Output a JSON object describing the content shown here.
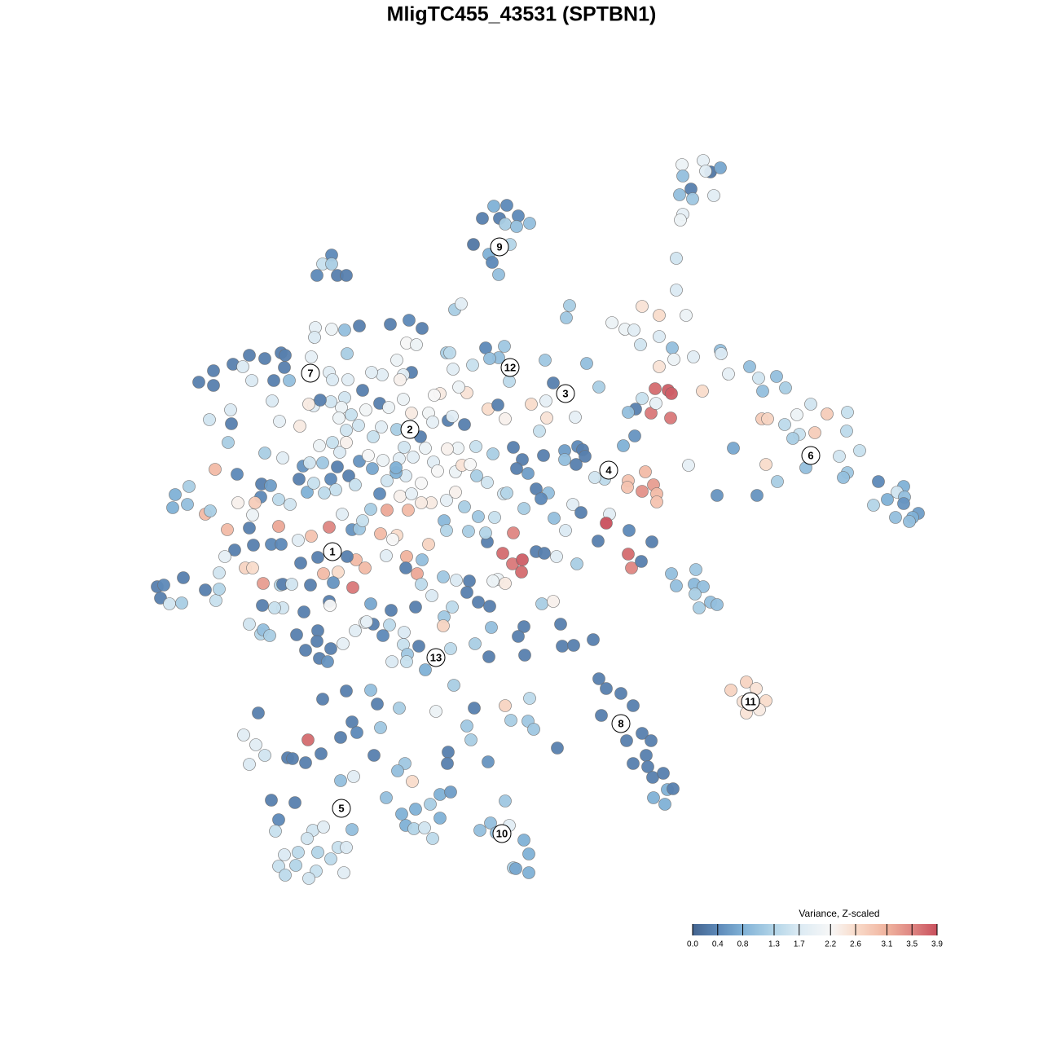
{
  "chart_data": {
    "type": "scatter",
    "title": "MligTC455_43531 (SPTBN1)",
    "colorbar_title": "Variance, Z-scaled",
    "xlim": [
      0,
      1280
    ],
    "ylim": [
      1280,
      0
    ],
    "clim": [
      0,
      3.9
    ],
    "cticks": [
      {
        "value": 0,
        "label": "0.0"
      },
      0.4,
      0.8,
      1.3,
      1.7,
      2.2,
      2.6,
      3.1,
      3.5,
      3.9
    ],
    "colormap": [
      [
        0,
        "#44648f"
      ],
      [
        0.4,
        "#5d89b8"
      ],
      [
        0.8,
        "#80b1d6"
      ],
      [
        1.3,
        "#b3d5e8"
      ],
      [
        1.7,
        "#dbeaf3"
      ],
      [
        2.2,
        "#f7f7f7"
      ],
      [
        2.6,
        "#f9dccb"
      ],
      [
        3.1,
        "#f0b39e"
      ],
      [
        3.5,
        "#de8682"
      ],
      [
        3.9,
        "#c9505d"
      ]
    ],
    "x": [
      837,
      863,
      872,
      884,
      866,
      838,
      834,
      848,
      850,
      876,
      838,
      835,
      830,
      830,
      606,
      622,
      592,
      613,
      620,
      636,
      650,
      634,
      581,
      600,
      604,
      626,
      612,
      407,
      396,
      407,
      389,
      414,
      425,
      558,
      566,
      699,
      695,
      788,
      809,
      842,
      751,
      767,
      778,
      809,
      786,
      825,
      827,
      851,
      884,
      885,
      920,
      931,
      953,
      936,
      964,
      894,
      862,
      809,
      804,
      820,
      824,
      799,
      823,
      788,
      805,
      780,
      771,
      779,
      765,
      995,
      978,
      1015,
      1040,
      935,
      942,
      963,
      981,
      973,
      1000,
      1039,
      1030,
      1055,
      989,
      1040,
      1035,
      1078,
      1109,
      1101,
      1110,
      1089,
      1072,
      1109,
      1127,
      1120,
      1099,
      1116,
      954,
      940,
      900,
      880,
      929,
      845,
      771,
      792,
      770,
      802,
      788,
      806,
      806,
      748,
      744,
      772,
      734,
      800,
      771,
      775,
      787,
      742,
      730,
      824,
      854,
      852,
      863,
      830,
      853,
      872,
      880,
      858,
      916,
      897,
      928,
      912,
      940,
      916,
      932,
      728,
      735,
      744,
      762,
      777,
      738,
      769,
      788,
      799,
      793,
      777,
      795,
      801,
      814,
      819,
      826,
      802,
      816,
      620,
      602,
      625,
      589,
      609,
      643,
      649,
      630,
      633,
      649,
      333,
      362,
      342,
      338,
      384,
      397,
      377,
      432,
      415,
      425,
      349,
      366,
      390,
      406,
      342,
      363,
      388,
      350,
      422,
      379,
      418,
      434,
      396,
      425,
      455,
      463,
      490,
      535,
      557,
      582,
      620,
      650,
      627,
      648,
      655,
      573,
      578,
      467,
      432,
      418,
      438,
      317,
      299,
      314,
      325,
      306,
      378,
      353,
      359,
      375,
      394,
      459,
      497,
      488,
      506,
      550,
      549,
      599,
      684,
      474,
      540,
      553,
      493,
      510,
      528,
      498,
      508,
      521,
      540,
      531,
      193,
      201,
      197,
      208,
      223,
      225,
      252,
      265,
      269,
      215,
      232,
      212,
      230,
      252,
      258,
      264,
      291,
      244,
      262,
      262,
      286,
      306,
      325,
      345,
      350,
      349,
      355,
      336,
      309,
      298,
      283,
      257,
      284,
      280,
      334,
      343,
      368,
      385,
      379,
      325,
      347,
      321,
      320,
      292,
      313,
      310,
      342,
      356,
      377,
      372,
      367,
      279,
      306,
      342,
      311,
      288,
      276,
      333,
      345,
      366,
      382,
      404,
      420,
      432,
      441,
      301,
      310,
      269,
      323,
      344,
      347,
      358,
      381,
      369,
      390,
      397,
      415,
      409,
      433,
      437,
      426,
      448,
      467,
      487,
      482,
      474,
      499,
      498,
      512,
      517,
      526,
      518,
      544,
      560,
      576,
      598,
      617,
      629,
      641,
      640,
      630,
      658,
      668,
      683,
      708,
      611,
      605,
      620,
      643,
      636,
      603,
      600,
      644,
      688,
      690,
      704,
      665,
      679,
      587,
      601,
      573,
      555,
      545,
      544,
      530,
      510,
      480,
      478,
      470,
      496,
      495,
      514,
      500,
      481,
      499,
      522,
      553,
      583,
      455,
      458,
      448,
      450,
      436,
      404,
      405,
      373,
      347,
      322,
      337,
      306,
      320,
      323,
      331,
      364,
      390,
      389,
      375,
      421,
      406,
      392,
      402,
      545,
      548,
      575,
      596,
      607,
      618,
      587,
      570,
      559,
      548,
      529,
      517,
      501,
      475,
      455,
      445,
      466,
      491,
      505,
      517,
      498,
      486,
      490,
      496,
      507,
      522,
      532,
      537,
      559,
      567,
      577,
      584,
      562,
      549,
      605,
      630,
      641,
      667,
      693,
      693,
      709,
      715,
      707,
      718,
      634,
      648,
      658,
      673,
      664,
      703,
      713,
      680,
      694,
      643,
      622,
      598,
      585,
      428,
      436,
      414,
      406,
      412,
      398,
      385,
      441,
      417,
      408,
      396,
      380,
      452,
      457,
      475,
      470,
      486,
      458,
      440,
      468,
      487,
      449,
      466,
      477,
      495,
      505,
      526,
      516,
      531,
      550,
      555,
      570,
      540,
      533,
      573,
      563,
      599,
      611,
      620,
      652,
      670,
      671,
      662,
      706,
      679,
      669,
      720,
      735,
      625,
      596,
      619,
      612,
      601,
      580,
      556,
      548,
      552,
      502,
      518,
      479,
      499,
      511,
      487,
      505,
      495,
      491,
      469,
      456,
      445,
      427,
      426,
      441,
      423,
      407,
      387,
      386,
      382,
      404,
      408,
      423,
      419,
      431,
      406,
      393,
      416,
      425,
      425,
      392,
      332
    ],
    "y": [
      202,
      197,
      211,
      206,
      210,
      216,
      239,
      232,
      244,
      240,
      263,
      270,
      317,
      356,
      253,
      252,
      268,
      268,
      275,
      265,
      274,
      278,
      300,
      312,
      322,
      300,
      337,
      313,
      324,
      324,
      338,
      338,
      338,
      380,
      373,
      375,
      390,
      376,
      387,
      387,
      396,
      404,
      405,
      413,
      423,
      427,
      441,
      438,
      430,
      434,
      450,
      464,
      462,
      480,
      476,
      459,
      480,
      450,
      477,
      479,
      483,
      507,
      513,
      489,
      495,
      502,
      506,
      535,
      547,
      496,
      509,
      508,
      506,
      514,
      514,
      521,
      533,
      538,
      531,
      529,
      560,
      553,
      574,
      580,
      586,
      591,
      597,
      604,
      610,
      613,
      620,
      618,
      630,
      635,
      635,
      640,
      591,
      570,
      550,
      608,
      608,
      571,
      590,
      579,
      598,
      595,
      603,
      606,
      616,
      631,
      642,
      651,
      664,
      665,
      680,
      697,
      689,
      588,
      586,
      704,
      699,
      717,
      720,
      719,
      729,
      739,
      742,
      746,
      837,
      847,
      845,
      861,
      860,
      875,
      871,
      785,
      833,
      845,
      851,
      866,
      878,
      909,
      900,
      909,
      927,
      937,
      941,
      954,
      949,
      969,
      968,
      979,
      987,
      983,
      1010,
      1013,
      1019,
      1022,
      1031,
      1048,
      1065,
      1066,
      1071,
      982,
      985,
      1006,
      1020,
      1019,
      1015,
      1029,
      1018,
      1040,
      1040,
      1049,
      1046,
      1046,
      1054,
      1063,
      1062,
      1069,
      1074,
      1071,
      1078,
      958,
      953,
      858,
      848,
      847,
      864,
      869,
      873,
      841,
      869,
      866,
      857,
      884,
      885,
      895,
      891,
      908,
      893,
      886,
      905,
      899,
      875,
      902,
      914,
      927,
      938,
      908,
      930,
      931,
      936,
      925,
      927,
      937,
      946,
      959,
      923,
      937,
      935,
      918,
      979,
      975,
      972,
      999,
      993,
      987,
      1013,
      1017,
      1016,
      1004,
      1029,
      720,
      718,
      734,
      741,
      740,
      709,
      724,
      737,
      723,
      607,
      597,
      623,
      619,
      631,
      627,
      576,
      582,
      469,
      455,
      473,
      447,
      436,
      440,
      433,
      436,
      451,
      467,
      467,
      467,
      450,
      503,
      515,
      520,
      543,
      492,
      517,
      523,
      498,
      496,
      556,
      562,
      594,
      610,
      617,
      617,
      632,
      613,
      619,
      604,
      572,
      588,
      650,
      648,
      646,
      669,
      675,
      683,
      668,
      668,
      663,
      658,
      647,
      631,
      650,
      649,
      697,
      697,
      703,
      716,
      718,
      717,
      717,
      718,
      691,
      684,
      704,
      702,
      715,
      721,
      687,
      683,
      697,
      655,
      657,
      662,
      682,
      683,
      697,
      704,
      717,
      668,
      687,
      708,
      712,
      713,
      665,
      679,
      692,
      687,
      702,
      654,
      677,
      679,
      683,
      692,
      711,
      713,
      716,
      769,
      781,
      770,
      806,
      804,
      766,
      793,
      792,
      741,
      738,
      739,
      744,
      727,
      745,
      757,
      768,
      731,
      745,
      749,
      767,
      780,
      776,
      791,
      793,
      803,
      812,
      812,
      822,
      796,
      790,
      741,
      766,
      764,
      763,
      774,
      738,
      743,
      751,
      746,
      743,
      746,
      766,
      778,
      773,
      780,
      779,
      774,
      787,
      798,
      790,
      796,
      808,
      812,
      639,
      651,
      652,
      654,
      635,
      606,
      634,
      622,
      604,
      614,
      617,
      617,
      626,
      626,
      625,
      639,
      606,
      609,
      606,
      593,
      584,
      580,
      563,
      549,
      561,
      550,
      567,
      578,
      579,
      571,
      570,
      548,
      550,
      551,
      557,
      549,
      564,
      559,
      553,
      564,
      548,
      552,
      570,
      560,
      575,
      581,
      600,
      605,
      612,
      619,
      629,
      636,
      651,
      624,
      605,
      592,
      584,
      584,
      595,
      573,
      588,
      601,
      605,
      593,
      566,
      555,
      543,
      568,
      568,
      559,
      575,
      590,
      565,
      574,
      536,
      522,
      524,
      527,
      503,
      495,
      500,
      490,
      507,
      507,
      536,
      518,
      516,
      511,
      521,
      483,
      485,
      482,
      475,
      502,
      497,
      514,
      496,
      492,
      513,
      529,
      512,
      470,
      442,
      446,
      475,
      468,
      427,
      425,
      439,
      440,
      448,
      453,
      433,
      433,
      393,
      403,
      398,
      421,
      423,
      442,
      457,
      460,
      466,
      460,
      457,
      479,
      466,
      434,
      400,
      405,
      404,
      402,
      414,
      438,
      457,
      466,
      488,
      500,
      509,
      493,
      491,
      513,
      543,
      528,
      547,
      596
    ],
    "values": [
      2.0,
      1.9,
      0.2,
      0.7,
      1.8,
      1.0,
      1.0,
      0.3,
      1.1,
      1.8,
      1.9,
      2.0,
      1.6,
      1.7,
      0.8,
      0.4,
      0.3,
      0.3,
      1.2,
      0.4,
      1.0,
      1.0,
      0.2,
      0.8,
      0.4,
      1.3,
      1.0,
      0.4,
      1.5,
      1.2,
      0.4,
      0.3,
      0.3,
      1.2,
      1.8,
      1.2,
      1.1,
      2.5,
      2.6,
      2.0,
      2.0,
      2.0,
      1.8,
      1.7,
      1.6,
      1.0,
      2.0,
      1.8,
      1.0,
      1.7,
      1.0,
      1.6,
      1.0,
      1.0,
      1.2,
      1.9,
      2.6,
      2.5,
      3.7,
      3.8,
      3.8,
      3.6,
      3.6,
      1.5,
      1.9,
      0.3,
      1.0,
      0.5,
      0.8,
      1.6,
      2.0,
      2.8,
      1.5,
      2.8,
      2.7,
      1.4,
      1.5,
      1.2,
      2.8,
      1.4,
      1.6,
      1.5,
      1.0,
      1.1,
      1.0,
      0.4,
      0.8,
      1.6,
      1.0,
      0.8,
      1.3,
      0.5,
      0.6,
      0.8,
      1.0,
      1.0,
      1.2,
      2.6,
      0.7,
      0.5,
      0.5,
      1.9,
      2.9,
      3.0,
      2.9,
      3.3,
      3.4,
      3.0,
      2.9,
      1.8,
      3.9,
      0.4,
      0.3,
      0.3,
      3.7,
      3.5,
      0.3,
      1.4,
      1.6,
      1.0,
      1.1,
      0.9,
      1.0,
      1.0,
      1.2,
      1.0,
      1.0,
      1.2,
      2.7,
      2.7,
      2.5,
      2.5,
      2.6,
      2.5,
      2.4,
      0.3,
      0.3,
      0.3,
      0.3,
      0.3,
      0.3,
      0.3,
      0.3,
      0.3,
      0.3,
      0.3,
      0.3,
      0.3,
      0.3,
      0.8,
      0.3,
      0.8,
      0.8,
      1.1,
      1.0,
      1.8,
      1.0,
      1.0,
      0.8,
      0.8,
      1.2,
      0.7,
      0.8,
      0.3,
      0.3,
      0.4,
      1.5,
      1.6,
      1.8,
      1.6,
      1.0,
      1.5,
      1.7,
      1.7,
      1.4,
      1.3,
      1.4,
      1.5,
      1.3,
      1.5,
      1.4,
      1.8,
      1.6,
      1.0,
      1.8,
      0.3,
      0.3,
      1.0,
      0.3,
      1.2,
      2.0,
      1.2,
      0.3,
      2.7,
      1.4,
      1.2,
      1.1,
      1.1,
      1.1,
      1.2,
      1.1,
      0.3,
      0.3,
      0.4,
      0.3,
      1.8,
      1.8,
      1.6,
      1.7,
      3.7,
      0.3,
      0.3,
      0.3,
      0.3,
      0.3,
      1.1,
      1.0,
      2.6,
      0.3,
      0.3,
      0.5,
      0.3,
      1.0,
      0.8,
      0.6,
      0.8,
      0.8,
      1.2,
      0.8,
      1.3,
      1.6,
      0.8,
      1.4,
      0.3,
      0.4,
      0.3,
      1.6,
      1.2,
      0.3,
      0.3,
      1.5,
      1.3,
      0.8,
      1.2,
      0.8,
      1.0,
      3.0,
      1.2,
      3.0,
      0.4,
      0.3,
      0.3,
      0.3,
      0.3,
      0.3,
      0.3,
      0.3,
      0.3,
      0.3,
      1.0,
      0.3,
      1.7,
      1.7,
      1.7,
      1.6,
      0.3,
      1.2,
      1.7,
      1.9,
      2.4,
      1.8,
      2.4,
      1.2,
      1.8,
      0.3,
      0.4,
      2.3,
      2.8,
      2.0,
      1.4,
      1.6,
      0.8,
      0.5,
      0.3,
      3.0,
      0.3,
      3.2,
      0.3,
      0.3,
      1.9,
      0.4,
      0.4,
      1.8,
      2.9,
      3.5,
      1.8,
      0.5,
      1.1,
      2.7,
      2.6,
      1.6,
      3.3,
      1.3,
      0.3,
      1.6,
      0.3,
      0.3,
      0.3,
      3.0,
      2.6,
      0.5,
      3.6,
      3.0,
      0.3,
      3.0,
      3.0,
      2.6,
      2.2,
      1.8,
      3.1,
      0.3,
      3.2,
      1.4,
      2.7,
      1.0,
      1.1,
      1.7,
      0.3,
      0.3,
      3.7,
      3.6,
      3.8,
      3.7,
      3.5,
      0.3,
      0.3,
      1.8,
      1.2,
      2.0,
      2.0,
      2.4,
      0.3,
      0.3,
      1.0,
      0.3,
      0.3,
      0.3,
      0.3,
      0.3,
      1.2,
      2.3,
      0.3,
      0.3,
      0.3,
      1.4,
      1.1,
      2.7,
      1.7,
      0.3,
      0.3,
      1.4,
      0.4,
      1.7,
      1.5,
      0.3,
      1.1,
      1.7,
      1.5,
      0.8,
      1.4,
      1.2,
      0.7,
      0.3,
      2.0,
      1.9,
      1.8,
      0.3,
      2.2,
      0.3,
      1.6,
      0.3,
      1.5,
      1.6,
      1.3,
      1.0,
      1.2,
      0.3,
      0.3,
      0.3,
      0.3,
      1.9,
      0.3,
      0.3,
      0.5,
      0.9,
      1.3,
      1.2,
      1.3,
      1.5,
      1.6,
      1.1,
      1.2,
      2.3,
      1.9,
      2.4,
      2.4,
      3.0,
      3.2,
      1.2,
      1.5,
      0.4,
      2.3,
      1.9,
      2.2,
      1.7,
      0.8,
      1.8,
      1.6,
      1.8,
      2.0,
      1.8,
      2.2,
      2.0,
      2.5,
      2.2,
      1.5,
      2.0,
      2.3,
      1.2,
      0.3,
      0.3,
      0.3,
      0.6,
      1.0,
      0.4,
      0.3,
      0.3,
      0.3,
      0.3,
      0.6,
      0.3,
      1.0,
      0.4,
      1.8,
      0.3,
      1.0,
      1.7,
      1.2,
      1.3,
      1.6,
      1.2,
      0.3,
      1.5,
      0.3,
      0.4,
      1.5,
      1.4,
      1.5,
      0.5,
      1.7,
      1.5,
      1.1,
      1.6,
      2.2,
      0.7,
      1.6,
      2.0,
      0.8,
      1.5,
      1.6,
      1.8,
      1.2,
      2.1,
      0.3,
      2.0,
      2.0,
      2.4,
      2.1,
      0.3,
      1.9,
      0.3,
      1.8,
      0.3,
      2.4,
      2.2,
      2.5,
      2.0,
      2.6,
      0.3,
      2.3,
      2.6,
      1.9,
      2.5,
      1.5,
      1.9,
      0.3,
      1.1,
      1.0,
      1.2,
      1.4,
      0.4,
      1.1,
      1.0,
      1.0,
      1.5,
      1.8,
      1.2,
      1.4,
      0.4,
      0.3,
      0.3,
      2.2,
      2.0,
      2.0,
      0.3,
      1.8,
      2.3,
      1.8,
      1.8,
      0.3,
      1.8,
      1.2,
      0.3,
      1.0,
      2.0,
      1.9,
      1.7,
      1.9,
      1.8,
      1.7,
      1.6,
      2.0,
      1.5,
      1.6,
      0.3,
      2.0,
      2.3,
      1.6,
      2.0,
      0.6
    ],
    "cluster_labels": [
      {
        "text": "1",
        "x": 408,
        "y": 677
      },
      {
        "text": "2",
        "x": 503,
        "y": 527
      },
      {
        "text": "3",
        "x": 694,
        "y": 483
      },
      {
        "text": "4",
        "x": 747,
        "y": 577
      },
      {
        "text": "5",
        "x": 419,
        "y": 992
      },
      {
        "text": "6",
        "x": 995,
        "y": 559
      },
      {
        "text": "7",
        "x": 381,
        "y": 458
      },
      {
        "text": "8",
        "x": 762,
        "y": 888
      },
      {
        "text": "9",
        "x": 613,
        "y": 303
      },
      {
        "text": "10",
        "x": 616,
        "y": 1023
      },
      {
        "text": "11",
        "x": 921,
        "y": 861
      },
      {
        "text": "12",
        "x": 626,
        "y": 451
      },
      {
        "text": "13",
        "x": 535,
        "y": 807
      }
    ]
  }
}
